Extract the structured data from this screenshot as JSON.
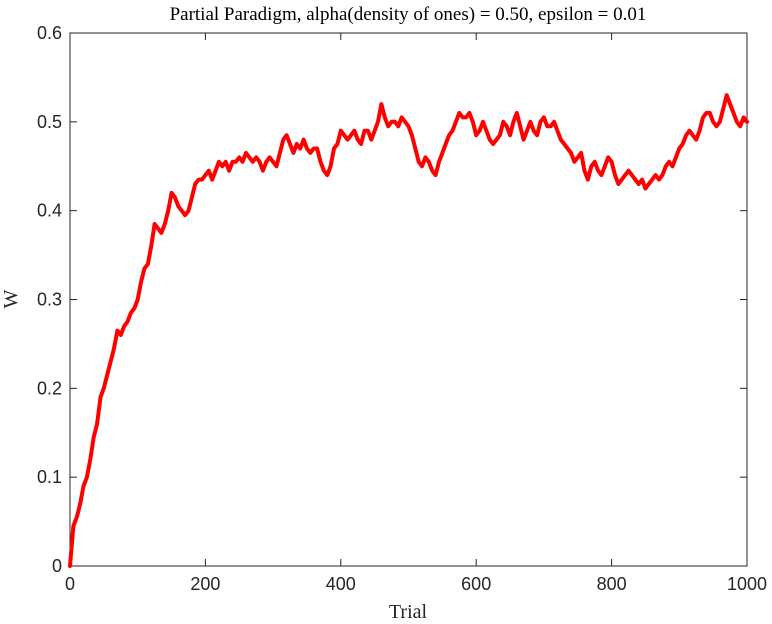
{
  "chart_data": {
    "type": "line",
    "title": "Partial Paradigm, alpha(density of ones) = 0.50, epsilon = 0.01",
    "xlabel": "Trial",
    "ylabel": "W",
    "xlim": [
      0,
      1000
    ],
    "ylim": [
      0,
      0.6
    ],
    "xticks": [
      0,
      200,
      400,
      600,
      800,
      1000
    ],
    "xtick_labels": [
      "0",
      "200",
      "400",
      "600",
      "800",
      "1000"
    ],
    "yticks": [
      0,
      0.1,
      0.2,
      0.3,
      0.4,
      0.5,
      0.6
    ],
    "ytick_labels": [
      "0",
      "0.1",
      "0.2",
      "0.3",
      "0.4",
      "0.5",
      "0.6"
    ],
    "grid": false,
    "legend": "none",
    "series": [
      {
        "color": "#ff0000",
        "x": [
          0,
          5,
          10,
          15,
          20,
          25,
          30,
          35,
          40,
          45,
          50,
          55,
          60,
          65,
          70,
          75,
          80,
          85,
          90,
          95,
          100,
          105,
          110,
          115,
          120,
          125,
          130,
          135,
          140,
          145,
          150,
          155,
          160,
          165,
          170,
          175,
          180,
          185,
          190,
          195,
          200,
          205,
          210,
          215,
          220,
          225,
          230,
          235,
          240,
          245,
          250,
          255,
          260,
          265,
          270,
          275,
          280,
          285,
          290,
          295,
          300,
          305,
          310,
          315,
          320,
          325,
          330,
          335,
          340,
          345,
          350,
          355,
          360,
          365,
          370,
          375,
          380,
          385,
          390,
          395,
          400,
          405,
          410,
          415,
          420,
          425,
          430,
          435,
          440,
          445,
          450,
          455,
          460,
          465,
          470,
          475,
          480,
          485,
          490,
          495,
          500,
          505,
          510,
          515,
          520,
          525,
          530,
          535,
          540,
          545,
          550,
          555,
          560,
          565,
          570,
          575,
          580,
          585,
          590,
          595,
          600,
          605,
          610,
          615,
          620,
          625,
          630,
          635,
          640,
          645,
          650,
          655,
          660,
          665,
          670,
          675,
          680,
          685,
          690,
          695,
          700,
          705,
          710,
          715,
          720,
          725,
          730,
          735,
          740,
          745,
          750,
          755,
          760,
          765,
          770,
          775,
          780,
          785,
          790,
          795,
          800,
          805,
          810,
          815,
          820,
          825,
          830,
          835,
          840,
          845,
          850,
          855,
          860,
          865,
          870,
          875,
          880,
          885,
          890,
          895,
          900,
          905,
          910,
          915,
          920,
          925,
          930,
          935,
          940,
          945,
          950,
          955,
          960,
          965,
          970,
          975,
          980,
          985,
          990,
          995,
          1000
        ],
        "y": [
          0.0,
          0.045,
          0.055,
          0.07,
          0.09,
          0.1,
          0.12,
          0.145,
          0.16,
          0.19,
          0.2,
          0.215,
          0.23,
          0.245,
          0.265,
          0.26,
          0.27,
          0.275,
          0.285,
          0.29,
          0.3,
          0.32,
          0.335,
          0.34,
          0.36,
          0.385,
          0.38,
          0.375,
          0.385,
          0.4,
          0.42,
          0.415,
          0.405,
          0.4,
          0.395,
          0.4,
          0.415,
          0.43,
          0.435,
          0.435,
          0.44,
          0.445,
          0.435,
          0.445,
          0.455,
          0.45,
          0.455,
          0.445,
          0.455,
          0.455,
          0.46,
          0.455,
          0.465,
          0.46,
          0.455,
          0.46,
          0.455,
          0.445,
          0.455,
          0.46,
          0.455,
          0.45,
          0.465,
          0.48,
          0.485,
          0.475,
          0.465,
          0.475,
          0.47,
          0.48,
          0.47,
          0.465,
          0.47,
          0.47,
          0.455,
          0.445,
          0.44,
          0.45,
          0.47,
          0.475,
          0.49,
          0.485,
          0.48,
          0.485,
          0.49,
          0.48,
          0.475,
          0.49,
          0.49,
          0.48,
          0.49,
          0.5,
          0.52,
          0.505,
          0.495,
          0.5,
          0.5,
          0.495,
          0.505,
          0.5,
          0.495,
          0.485,
          0.47,
          0.455,
          0.45,
          0.46,
          0.455,
          0.445,
          0.44,
          0.455,
          0.465,
          0.475,
          0.485,
          0.49,
          0.5,
          0.51,
          0.505,
          0.505,
          0.51,
          0.5,
          0.485,
          0.49,
          0.5,
          0.49,
          0.48,
          0.475,
          0.48,
          0.485,
          0.5,
          0.495,
          0.485,
          0.5,
          0.51,
          0.495,
          0.48,
          0.49,
          0.5,
          0.49,
          0.485,
          0.5,
          0.505,
          0.495,
          0.495,
          0.5,
          0.49,
          0.48,
          0.475,
          0.47,
          0.465,
          0.455,
          0.46,
          0.465,
          0.445,
          0.435,
          0.45,
          0.455,
          0.445,
          0.44,
          0.45,
          0.46,
          0.455,
          0.44,
          0.43,
          0.435,
          0.44,
          0.445,
          0.44,
          0.435,
          0.43,
          0.435,
          0.425,
          0.43,
          0.435,
          0.44,
          0.435,
          0.44,
          0.45,
          0.455,
          0.45,
          0.46,
          0.47,
          0.475,
          0.485,
          0.49,
          0.485,
          0.48,
          0.49,
          0.505,
          0.51,
          0.51,
          0.5,
          0.495,
          0.5,
          0.515,
          0.53,
          0.52,
          0.51,
          0.5,
          0.495,
          0.505,
          0.5
        ]
      }
    ]
  }
}
